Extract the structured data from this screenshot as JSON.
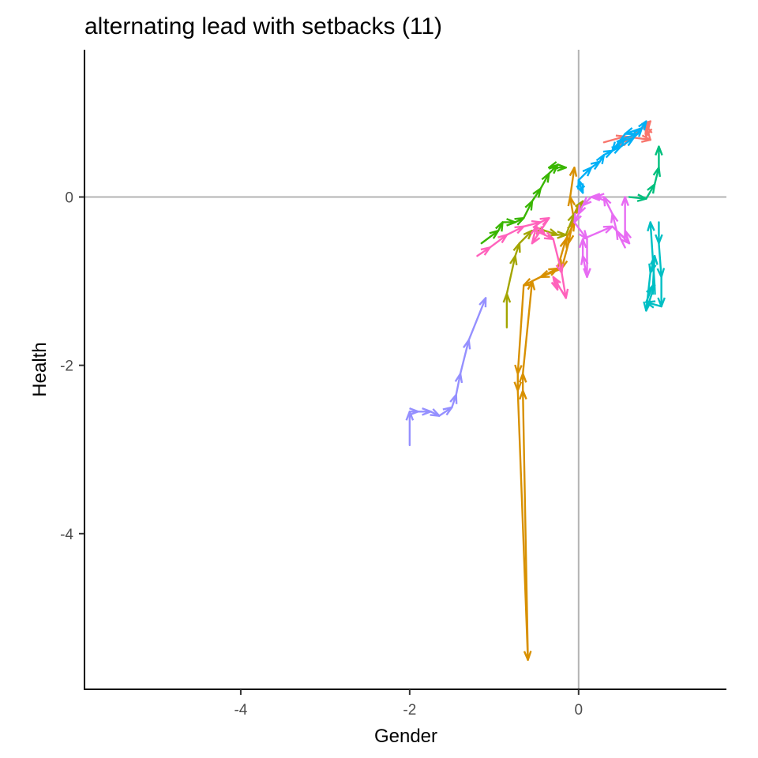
{
  "chart_data": {
    "type": "line",
    "title": "alternating lead with setbacks (11)",
    "xlabel": "Gender",
    "ylabel": "Health",
    "xlim": [
      -5.85,
      1.75
    ],
    "ylim": [
      -5.85,
      1.75
    ],
    "x_ticks": [
      -4,
      -2,
      0
    ],
    "y_ticks": [
      0,
      -2,
      -4
    ],
    "x_tick_labels": [
      "-4",
      "-2",
      "0"
    ],
    "y_tick_labels": [
      "0",
      "-2",
      "-4"
    ],
    "reference_lines": {
      "x": 0,
      "y": 0,
      "color": "#b3b3b3"
    },
    "arrows": true,
    "grid": false,
    "legend": "none",
    "series": [
      {
        "color": "#F8766D",
        "points": [
          [
            0.3,
            0.65
          ],
          [
            0.55,
            0.72
          ],
          [
            0.85,
            0.68
          ],
          [
            0.8,
            0.85
          ],
          [
            0.45,
            0.6
          ],
          [
            0.6,
            0.7
          ],
          [
            0.85,
            0.9
          ],
          [
            0.8,
            0.72
          ]
        ]
      },
      {
        "color": "#D89000",
        "points": [
          [
            0.1,
            -0.05
          ],
          [
            -0.05,
            -0.2
          ],
          [
            -0.12,
            -0.55
          ],
          [
            -0.2,
            -0.85
          ],
          [
            -0.45,
            -0.95
          ],
          [
            -0.65,
            -1.05
          ],
          [
            -0.72,
            -2.1
          ],
          [
            -0.72,
            -2.3
          ],
          [
            -0.6,
            -5.5
          ],
          [
            -0.66,
            -2.3
          ],
          [
            -0.66,
            -2.1
          ],
          [
            -0.55,
            -1.0
          ],
          [
            -0.25,
            -0.85
          ],
          [
            -0.15,
            -0.5
          ],
          [
            -0.05,
            -0.3
          ],
          [
            -0.1,
            0.0
          ],
          [
            -0.05,
            0.35
          ]
        ]
      },
      {
        "color": "#A3A500",
        "points": [
          [
            -0.85,
            -1.55
          ],
          [
            -0.85,
            -1.15
          ],
          [
            -0.75,
            -0.7
          ],
          [
            -0.7,
            -0.55
          ],
          [
            -0.55,
            -0.4
          ],
          [
            -0.4,
            -0.4
          ],
          [
            -0.25,
            -0.45
          ],
          [
            -0.15,
            -0.45
          ],
          [
            -0.05,
            -0.2
          ],
          [
            0.05,
            -0.05
          ]
        ]
      },
      {
        "color": "#39B600",
        "points": [
          [
            -1.15,
            -0.55
          ],
          [
            -0.95,
            -0.4
          ],
          [
            -0.9,
            -0.3
          ],
          [
            -0.75,
            -0.3
          ],
          [
            -0.65,
            -0.25
          ],
          [
            -0.55,
            -0.05
          ],
          [
            -0.45,
            0.1
          ],
          [
            -0.35,
            0.28
          ],
          [
            -0.25,
            0.38
          ],
          [
            -0.35,
            0.35
          ],
          [
            -0.15,
            0.35
          ]
        ]
      },
      {
        "color": "#00BF7D",
        "points": [
          [
            0.6,
            0.0
          ],
          [
            0.8,
            -0.02
          ],
          [
            0.9,
            0.15
          ],
          [
            0.95,
            0.35
          ],
          [
            0.95,
            0.6
          ]
        ]
      },
      {
        "color": "#00BFC4",
        "points": [
          [
            0.95,
            -0.3
          ],
          [
            0.95,
            -0.55
          ],
          [
            0.98,
            -0.95
          ],
          [
            0.98,
            -1.3
          ],
          [
            0.8,
            -1.25
          ],
          [
            0.88,
            -1.05
          ],
          [
            0.9,
            -0.7
          ],
          [
            0.85,
            -0.9
          ],
          [
            0.8,
            -1.35
          ],
          [
            0.9,
            -1.05
          ],
          [
            0.85,
            -0.3
          ]
        ]
      },
      {
        "color": "#00B0F6",
        "points": [
          [
            0.0,
            0.18
          ],
          [
            0.05,
            0.05
          ],
          [
            0.0,
            0.2
          ],
          [
            0.15,
            0.35
          ],
          [
            0.25,
            0.42
          ],
          [
            0.3,
            0.5
          ],
          [
            0.4,
            0.55
          ],
          [
            0.5,
            0.6
          ],
          [
            0.65,
            0.7
          ],
          [
            0.75,
            0.82
          ],
          [
            0.55,
            0.75
          ],
          [
            0.4,
            0.55
          ],
          [
            0.55,
            0.7
          ],
          [
            0.7,
            0.75
          ],
          [
            0.8,
            0.9
          ]
        ]
      },
      {
        "color": "#9590FF",
        "points": [
          [
            -2.0,
            -2.95
          ],
          [
            -2.0,
            -2.55
          ],
          [
            -1.9,
            -2.55
          ],
          [
            -1.75,
            -2.55
          ],
          [
            -1.65,
            -2.6
          ],
          [
            -1.5,
            -2.5
          ],
          [
            -1.45,
            -2.35
          ],
          [
            -1.4,
            -2.1
          ],
          [
            -1.3,
            -1.7
          ],
          [
            -1.1,
            -1.2
          ]
        ]
      },
      {
        "color": "#E76BF3",
        "points": [
          [
            0.55,
            -0.6
          ],
          [
            0.45,
            -0.4
          ],
          [
            0.4,
            -0.2
          ],
          [
            0.3,
            0.0
          ],
          [
            0.2,
            0.0
          ],
          [
            0.15,
            0.0
          ],
          [
            0.05,
            -0.1
          ],
          [
            0.0,
            -0.2
          ],
          [
            -0.05,
            -0.3
          ],
          [
            0.1,
            -0.5
          ],
          [
            0.1,
            -0.95
          ],
          [
            0.05,
            -0.7
          ],
          [
            0.05,
            -0.5
          ],
          [
            0.4,
            -0.35
          ],
          [
            0.6,
            -0.55
          ],
          [
            0.55,
            -0.4
          ],
          [
            0.55,
            0.0
          ]
        ]
      },
      {
        "color": "#FF62BC",
        "points": [
          [
            -1.2,
            -0.7
          ],
          [
            -1.05,
            -0.6
          ],
          [
            -0.85,
            -0.45
          ],
          [
            -0.65,
            -0.35
          ],
          [
            -0.45,
            -0.3
          ],
          [
            -0.35,
            -0.25
          ],
          [
            -0.55,
            -0.55
          ],
          [
            -0.5,
            -0.35
          ],
          [
            -0.4,
            -0.45
          ],
          [
            -0.3,
            -0.5
          ],
          [
            -0.2,
            -0.9
          ],
          [
            -0.15,
            -1.2
          ],
          [
            -0.3,
            -0.95
          ],
          [
            -0.25,
            -1.1
          ]
        ]
      }
    ]
  }
}
